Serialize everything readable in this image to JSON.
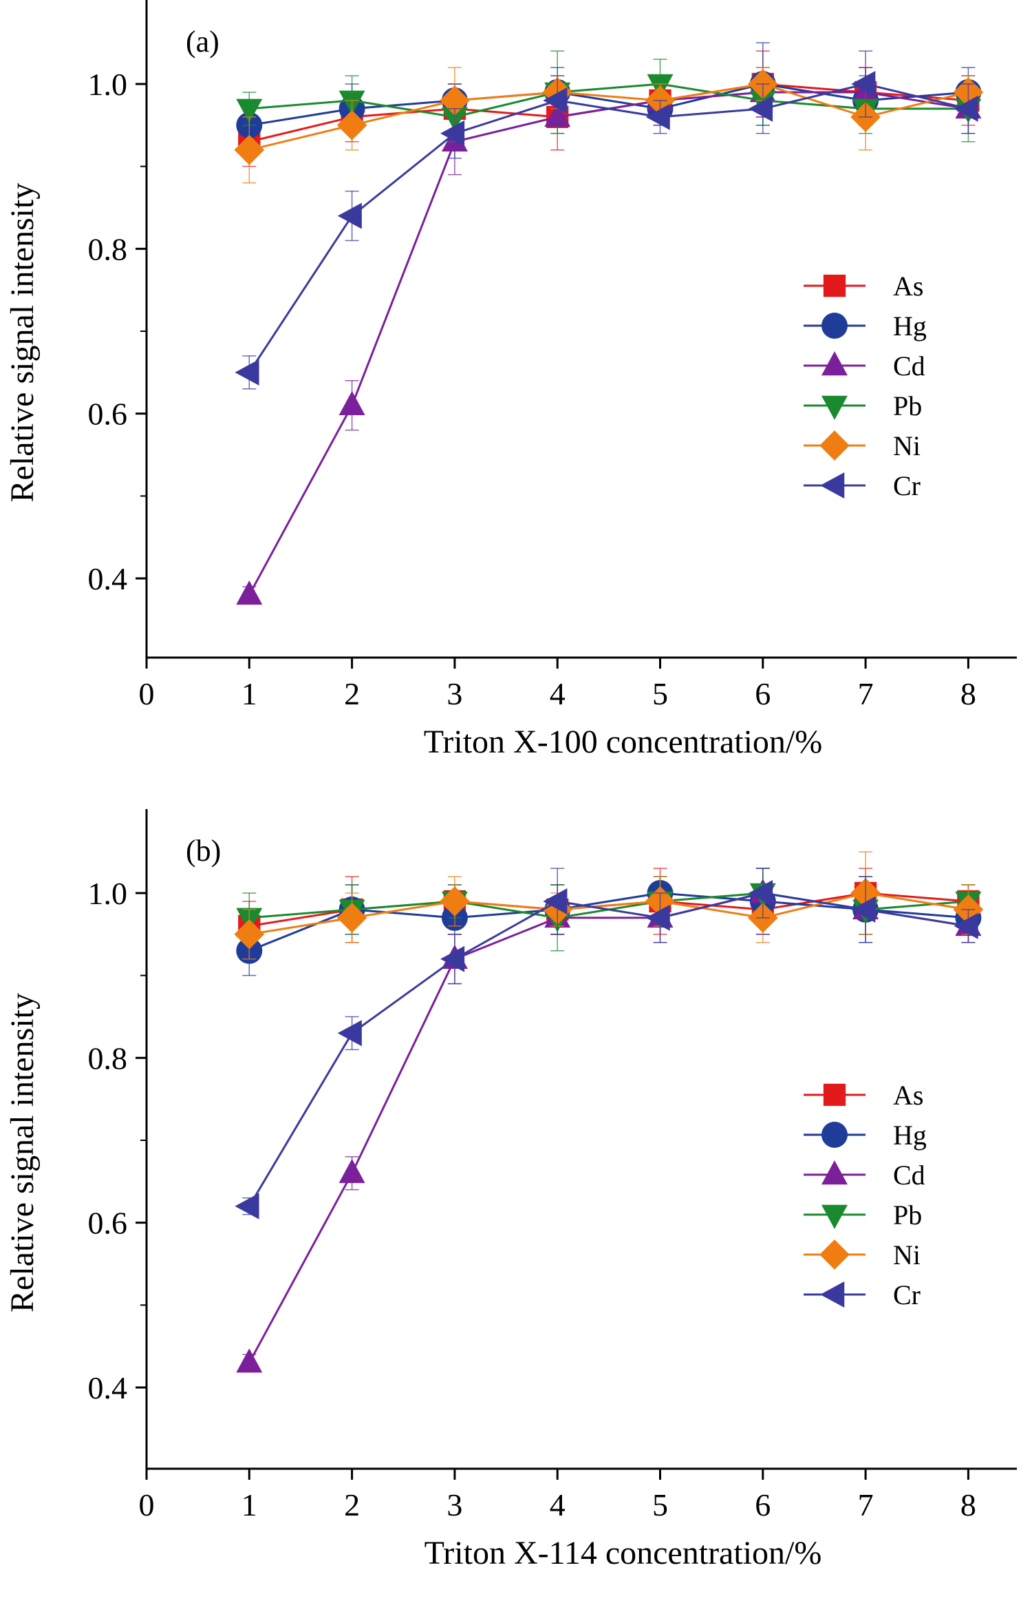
{
  "chart_data": [
    {
      "type": "line",
      "panel_label": "(a)",
      "xlabel": "Triton X-100 concentration/%",
      "ylabel": "Relative signal intensity",
      "xlim": [
        0,
        8.5
      ],
      "ylim": [
        0.3,
        1.1
      ],
      "xticks": [
        "0",
        "1",
        "2",
        "3",
        "4",
        "5",
        "6",
        "7",
        "8"
      ],
      "yticks": [
        "0.4",
        "0.6",
        "0.8",
        "1.0"
      ],
      "legend_position": "middle-right",
      "x": [
        1,
        2,
        3,
        4,
        5,
        6,
        7,
        8
      ],
      "series": [
        {
          "name": "As",
          "color": "#e31a1c",
          "marker": "square",
          "values": [
            0.93,
            0.96,
            0.97,
            0.96,
            0.98,
            1.0,
            0.99,
            0.98
          ],
          "errors": [
            0.03,
            0.03,
            0.03,
            0.04,
            0.03,
            0.04,
            0.03,
            0.03
          ]
        },
        {
          "name": "Hg",
          "color": "#1f3c99",
          "marker": "circle",
          "values": [
            0.95,
            0.97,
            0.98,
            0.99,
            0.97,
            1.0,
            0.98,
            0.99
          ],
          "errors": [
            0.02,
            0.03,
            0.02,
            0.03,
            0.02,
            0.05,
            0.03,
            0.03
          ]
        },
        {
          "name": "Cd",
          "color": "#7b1f9a",
          "marker": "triangle-up",
          "values": [
            0.38,
            0.61,
            0.93,
            0.96,
            0.98,
            0.99,
            0.99,
            0.97
          ],
          "errors": [
            0.01,
            0.03,
            0.04,
            0.02,
            0.02,
            0.03,
            0.03,
            0.03
          ]
        },
        {
          "name": "Pb",
          "color": "#1a8a2e",
          "marker": "triangle-down",
          "values": [
            0.97,
            0.98,
            0.96,
            0.99,
            1.0,
            0.98,
            0.97,
            0.97
          ],
          "errors": [
            0.02,
            0.03,
            0.03,
            0.05,
            0.03,
            0.03,
            0.03,
            0.04
          ]
        },
        {
          "name": "Ni",
          "color": "#f07d12",
          "marker": "diamond",
          "values": [
            0.92,
            0.95,
            0.98,
            0.99,
            0.98,
            1.0,
            0.96,
            0.99
          ],
          "errors": [
            0.04,
            0.03,
            0.04,
            0.02,
            0.02,
            0.02,
            0.04,
            0.02
          ]
        },
        {
          "name": "Cr",
          "color": "#3a3a9e",
          "marker": "triangle-left",
          "values": [
            0.65,
            0.84,
            0.94,
            0.98,
            0.96,
            0.97,
            1.0,
            0.97
          ],
          "errors": [
            0.02,
            0.03,
            0.03,
            0.03,
            0.02,
            0.03,
            0.04,
            0.03
          ]
        }
      ]
    },
    {
      "type": "line",
      "panel_label": "(b)",
      "xlabel": "Triton X-114 concentration/%",
      "ylabel": "Relative signal intensity",
      "xlim": [
        0,
        8.5
      ],
      "ylim": [
        0.3,
        1.1
      ],
      "xticks": [
        "0",
        "1",
        "2",
        "3",
        "4",
        "5",
        "6",
        "7",
        "8"
      ],
      "yticks": [
        "0.4",
        "0.6",
        "0.8",
        "1.0"
      ],
      "legend_position": "middle-right",
      "x": [
        1,
        2,
        3,
        4,
        5,
        6,
        7,
        8
      ],
      "series": [
        {
          "name": "As",
          "color": "#e31a1c",
          "marker": "square",
          "values": [
            0.96,
            0.98,
            0.99,
            0.98,
            0.99,
            0.98,
            1.0,
            0.99
          ],
          "errors": [
            0.03,
            0.04,
            0.02,
            0.03,
            0.04,
            0.03,
            0.03,
            0.02
          ]
        },
        {
          "name": "Hg",
          "color": "#1f3c99",
          "marker": "circle",
          "values": [
            0.93,
            0.98,
            0.97,
            0.98,
            1.0,
            0.99,
            0.98,
            0.97
          ],
          "errors": [
            0.03,
            0.03,
            0.02,
            0.03,
            0.02,
            0.04,
            0.04,
            0.03
          ]
        },
        {
          "name": "Cd",
          "color": "#7b1f9a",
          "marker": "triangle-up",
          "values": [
            0.43,
            0.66,
            0.92,
            0.97,
            0.97,
            1.0,
            0.98,
            0.96
          ],
          "errors": [
            0.01,
            0.02,
            0.03,
            0.02,
            0.03,
            0.03,
            0.03,
            0.02
          ]
        },
        {
          "name": "Pb",
          "color": "#1a8a2e",
          "marker": "triangle-down",
          "values": [
            0.97,
            0.98,
            0.99,
            0.97,
            0.99,
            1.0,
            0.98,
            0.99
          ],
          "errors": [
            0.03,
            0.03,
            0.02,
            0.04,
            0.03,
            0.03,
            0.03,
            0.02
          ]
        },
        {
          "name": "Ni",
          "color": "#f07d12",
          "marker": "diamond",
          "values": [
            0.95,
            0.97,
            0.99,
            0.98,
            0.99,
            0.97,
            1.0,
            0.98
          ],
          "errors": [
            0.03,
            0.03,
            0.03,
            0.02,
            0.03,
            0.03,
            0.05,
            0.03
          ]
        },
        {
          "name": "Cr",
          "color": "#3a3a9e",
          "marker": "triangle-left",
          "values": [
            0.62,
            0.83,
            0.92,
            0.99,
            0.97,
            1.0,
            0.98,
            0.96
          ],
          "errors": [
            0.01,
            0.02,
            0.03,
            0.04,
            0.03,
            0.03,
            0.04,
            0.02
          ]
        }
      ]
    }
  ]
}
